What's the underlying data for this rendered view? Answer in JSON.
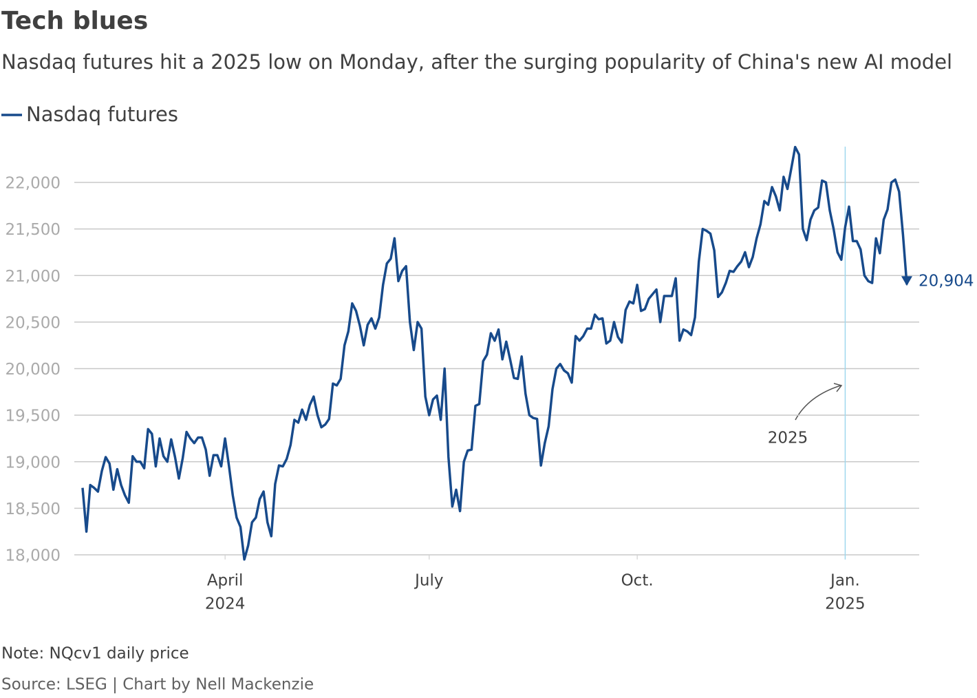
{
  "chart_data": {
    "type": "line",
    "title": "Tech blues",
    "subtitle": "Nasdaq futures hit a 2025 low on Monday, after the surging popularity of China's new AI model",
    "note": "Note: NQcv1 daily price",
    "source": "Source: LSEG | Chart by Nell Mackenzie",
    "annotation": "2025",
    "end_value_label": "20,904",
    "legend": "top-left",
    "grid": true,
    "series": [
      {
        "name": "Nasdaq futures",
        "color": "#174a8b",
        "values": [
          18720,
          18250,
          18750,
          18720,
          18680,
          18900,
          19050,
          18980,
          18700,
          18920,
          18750,
          18640,
          18560,
          19060,
          19000,
          19000,
          18930,
          19350,
          19300,
          18950,
          19250,
          19060,
          19000,
          19240,
          19050,
          18820,
          19040,
          19320,
          19250,
          19200,
          19260,
          19260,
          19130,
          18850,
          19070,
          19070,
          18950,
          19250,
          18960,
          18640,
          18400,
          18300,
          17950,
          18100,
          18350,
          18400,
          18600,
          18680,
          18350,
          18200,
          18760,
          18960,
          18950,
          19030,
          19180,
          19450,
          19420,
          19560,
          19450,
          19610,
          19700,
          19500,
          19370,
          19400,
          19460,
          19840,
          19820,
          19890,
          20250,
          20400,
          20700,
          20620,
          20460,
          20250,
          20470,
          20540,
          20430,
          20550,
          20900,
          21130,
          21180,
          21400,
          20940,
          21050,
          21100,
          20500,
          20200,
          20500,
          20430,
          19700,
          19500,
          19670,
          19710,
          19450,
          20000,
          19050,
          18520,
          18700,
          18470,
          19000,
          19120,
          19130,
          19600,
          19620,
          20080,
          20150,
          20380,
          20300,
          20420,
          20100,
          20290,
          20100,
          19900,
          19890,
          20130,
          19730,
          19500,
          19470,
          19460,
          18960,
          19200,
          19380,
          19780,
          20000,
          20050,
          19980,
          19950,
          19850,
          20350,
          20300,
          20350,
          20430,
          20430,
          20580,
          20530,
          20540,
          20270,
          20300,
          20500,
          20340,
          20280,
          20630,
          20720,
          20700,
          20900,
          20620,
          20640,
          20750,
          20800,
          20850,
          20500,
          20780,
          20780,
          20780,
          20970,
          20300,
          20420,
          20400,
          20360,
          20550,
          21150,
          21500,
          21480,
          21450,
          21270,
          20770,
          20820,
          20920,
          21050,
          21040,
          21100,
          21150,
          21250,
          21090,
          21200,
          21400,
          21550,
          21800,
          21760,
          21950,
          21850,
          21700,
          22060,
          21930,
          22150,
          22380,
          22300,
          21500,
          21380,
          21600,
          21700,
          21730,
          22020,
          22000,
          21700,
          21500,
          21250,
          21170,
          21520,
          21740,
          21370,
          21370,
          21280,
          21000,
          20940,
          20920,
          21400,
          21240,
          21600,
          21710,
          22000,
          22030,
          21900,
          21440,
          20904
        ]
      }
    ],
    "ylim": [
      17950,
      22400
    ],
    "yticks": [
      {
        "value": 18000,
        "label": "18,000"
      },
      {
        "value": 18500,
        "label": "18,500"
      },
      {
        "value": 19000,
        "label": "19,000"
      },
      {
        "value": 19500,
        "label": "19,500"
      },
      {
        "value": 20000,
        "label": "20,000"
      },
      {
        "value": 20500,
        "label": "20,500"
      },
      {
        "value": 21000,
        "label": "21,000"
      },
      {
        "value": 21500,
        "label": "21,500"
      },
      {
        "value": 22000,
        "label": "22,000"
      }
    ],
    "xlim": [
      0,
      214
    ],
    "xticks": [
      {
        "value": 37,
        "label": [
          "April",
          "2024"
        ]
      },
      {
        "value": 90,
        "label": [
          "July"
        ]
      },
      {
        "value": 144,
        "label": [
          "Oct."
        ]
      },
      {
        "value": 198,
        "label": [
          "Jan.",
          "2025"
        ]
      }
    ]
  }
}
